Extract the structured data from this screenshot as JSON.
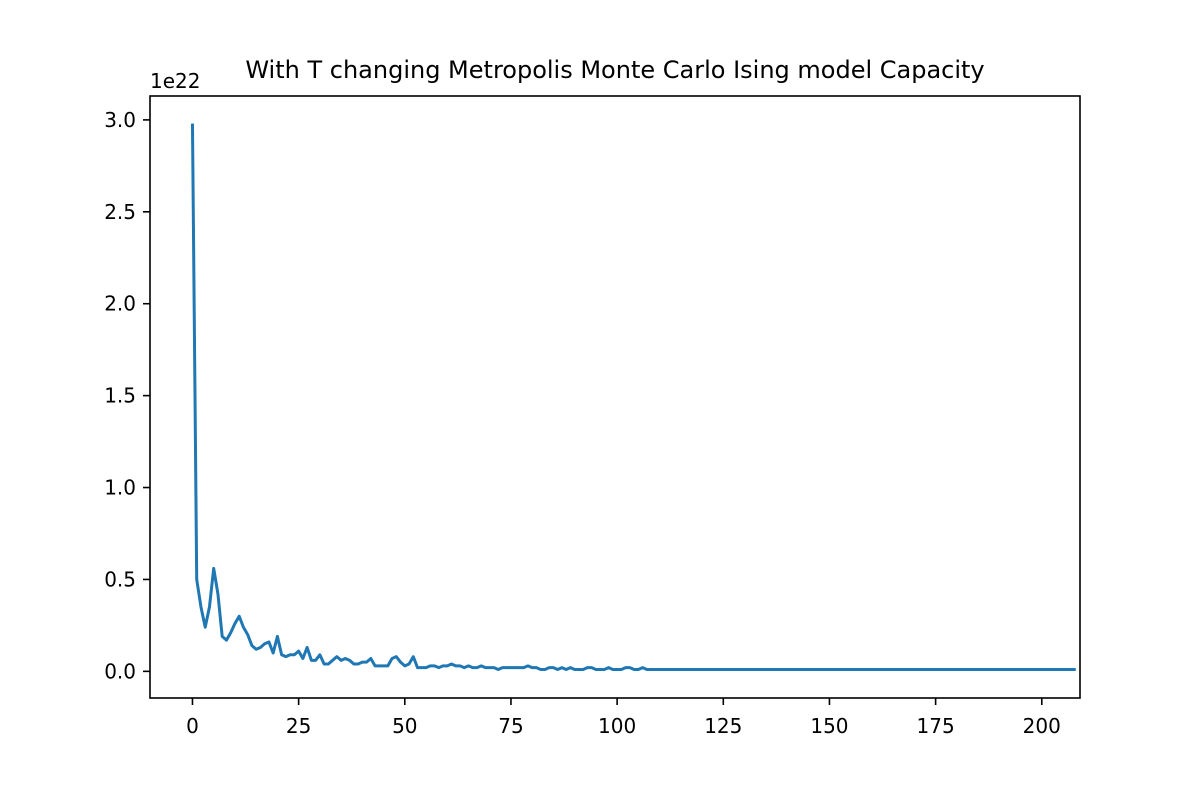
{
  "chart_data": {
    "type": "line",
    "title": "With T changing Metropolis Monte Carlo Ising model Capacity",
    "xlabel": "",
    "ylabel": "",
    "y_offset_label": "1e22",
    "xlim": [
      -10,
      209
    ],
    "ylim": [
      -0.145,
      3.13
    ],
    "x_ticks": [
      0,
      25,
      50,
      75,
      100,
      125,
      150,
      175,
      200
    ],
    "x_tick_labels": [
      "0",
      "25",
      "50",
      "75",
      "100",
      "125",
      "150",
      "175",
      "200"
    ],
    "y_ticks": [
      0.0,
      0.5,
      1.0,
      1.5,
      2.0,
      2.5,
      3.0
    ],
    "y_tick_labels": [
      "0.0",
      "0.5",
      "1.0",
      "1.5",
      "2.0",
      "2.5",
      "3.0"
    ],
    "grid": false,
    "series": [
      {
        "name": "Capacity",
        "color": "#1f77b4",
        "values": [
          2.98,
          0.5,
          0.35,
          0.24,
          0.35,
          0.56,
          0.42,
          0.19,
          0.17,
          0.21,
          0.26,
          0.3,
          0.24,
          0.2,
          0.14,
          0.12,
          0.13,
          0.15,
          0.16,
          0.1,
          0.19,
          0.09,
          0.08,
          0.09,
          0.09,
          0.11,
          0.07,
          0.13,
          0.06,
          0.06,
          0.09,
          0.04,
          0.04,
          0.06,
          0.08,
          0.06,
          0.07,
          0.06,
          0.04,
          0.04,
          0.05,
          0.05,
          0.07,
          0.03,
          0.03,
          0.03,
          0.03,
          0.07,
          0.08,
          0.05,
          0.03,
          0.04,
          0.08,
          0.02,
          0.02,
          0.02,
          0.03,
          0.03,
          0.02,
          0.03,
          0.03,
          0.04,
          0.03,
          0.03,
          0.02,
          0.03,
          0.02,
          0.02,
          0.03,
          0.02,
          0.02,
          0.02,
          0.01,
          0.02,
          0.02,
          0.02,
          0.02,
          0.02,
          0.02,
          0.03,
          0.02,
          0.02,
          0.01,
          0.01,
          0.02,
          0.02,
          0.01,
          0.02,
          0.01,
          0.02,
          0.01,
          0.01,
          0.01,
          0.02,
          0.02,
          0.01,
          0.01,
          0.01,
          0.02,
          0.01,
          0.01,
          0.01,
          0.02,
          0.02,
          0.01,
          0.01,
          0.02,
          0.01,
          0.01,
          0.01,
          0.01,
          0.01,
          0.01,
          0.01,
          0.01,
          0.01,
          0.01,
          0.01,
          0.01,
          0.01,
          0.01,
          0.01,
          0.01,
          0.01,
          0.01,
          0.01,
          0.01,
          0.01,
          0.01,
          0.01,
          0.01,
          0.01,
          0.01,
          0.01,
          0.01,
          0.01,
          0.01,
          0.01,
          0.01,
          0.01,
          0.01,
          0.01,
          0.01,
          0.01,
          0.01,
          0.01,
          0.01,
          0.01,
          0.01,
          0.01,
          0.01,
          0.01,
          0.01,
          0.01,
          0.01,
          0.01,
          0.01,
          0.01,
          0.01,
          0.01,
          0.01,
          0.01,
          0.01,
          0.01,
          0.01,
          0.01,
          0.01,
          0.01,
          0.01,
          0.01,
          0.01,
          0.01,
          0.01,
          0.01,
          0.01,
          0.01,
          0.01,
          0.01,
          0.01,
          0.01,
          0.01,
          0.01,
          0.01,
          0.01,
          0.01,
          0.01,
          0.01,
          0.01,
          0.01,
          0.01,
          0.01,
          0.01,
          0.01,
          0.01,
          0.01,
          0.01,
          0.01,
          0.01,
          0.01,
          0.01,
          0.01,
          0.01,
          0.01,
          0.01,
          0.01,
          0.01,
          0.01,
          0.01,
          0.01
        ]
      }
    ]
  }
}
